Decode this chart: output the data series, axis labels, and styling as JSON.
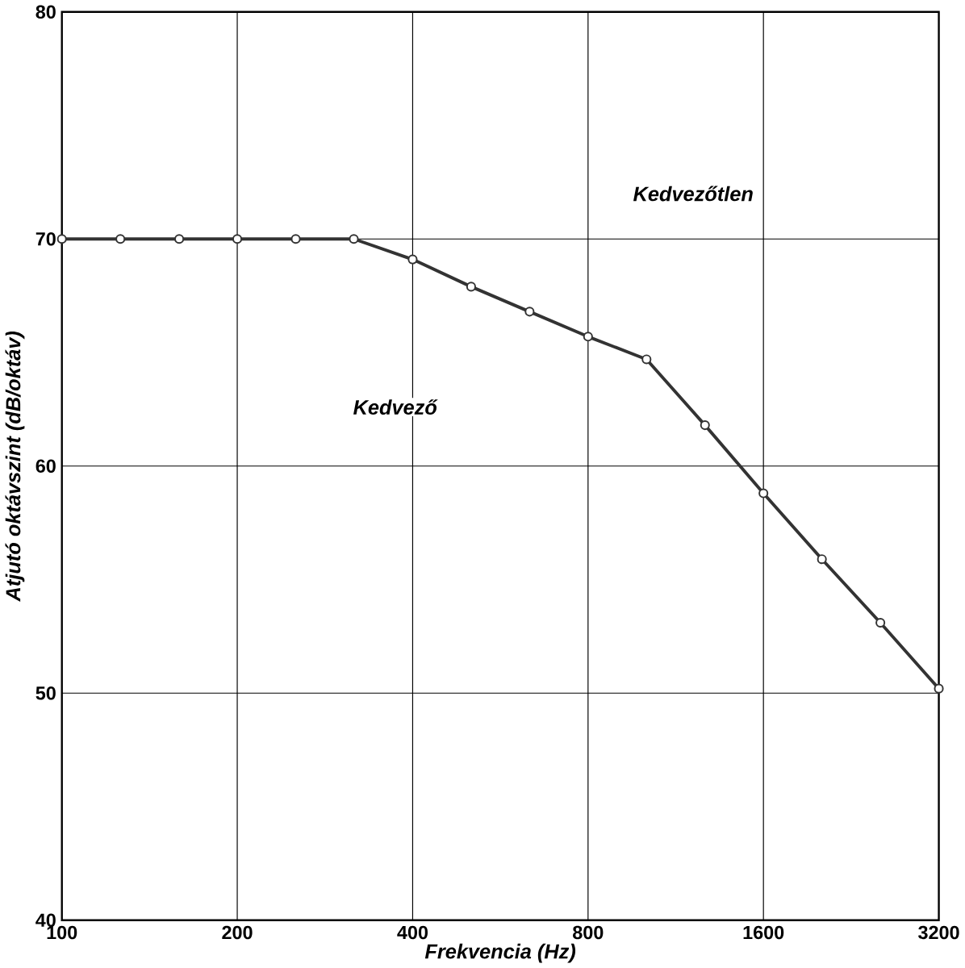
{
  "chart_data": {
    "type": "line",
    "xlabel": "Frekvencia (Hz)",
    "ylabel": "Atjutó oktávszint (dB/oktáv)",
    "x": [
      100,
      126,
      159,
      200,
      252,
      317,
      400,
      504,
      635,
      800,
      1008,
      1270,
      1600,
      2016,
      2540,
      3200
    ],
    "series": [
      {
        "color": "#333333",
        "values": [
          70,
          70,
          70,
          70,
          70,
          70,
          69.1,
          67.9,
          66.8,
          65.7,
          64.7,
          61.8,
          58.8,
          55.9,
          53.1,
          50.2
        ]
      }
    ],
    "xlim": [
      100,
      3200
    ],
    "ylim": [
      40,
      80
    ],
    "xticks": [
      100,
      200,
      400,
      800,
      1600,
      3200
    ],
    "yticks": [
      40,
      50,
      60,
      70,
      80
    ],
    "log": "x",
    "grid": true,
    "marker": "circle",
    "line_style": "solid",
    "annotations": [
      "Kedvezőtlen",
      "Kedvező"
    ]
  }
}
